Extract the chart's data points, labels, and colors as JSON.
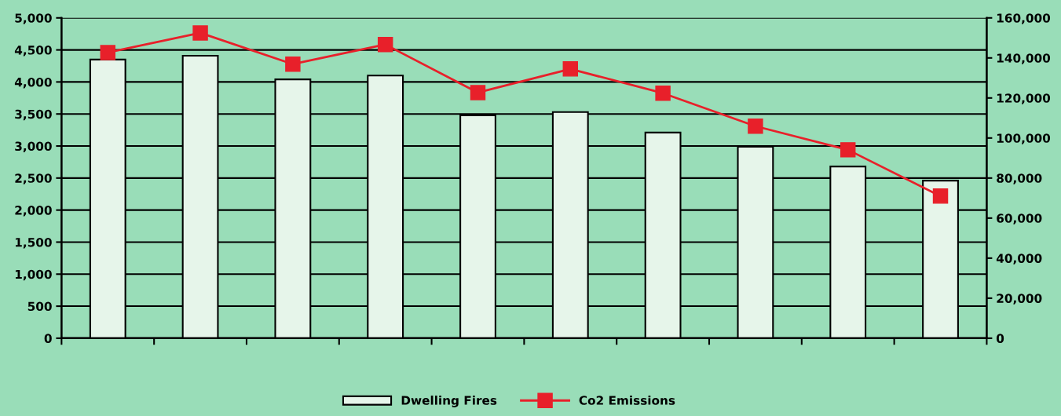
{
  "chart_data": {
    "type": "bar",
    "categories": [
      null,
      null,
      null,
      null,
      null,
      null,
      null,
      null,
      null,
      null
    ],
    "series": [
      {
        "name": "Dwelling Fires",
        "color": "#e6f5ea",
        "values": [
          4350,
          4410,
          4040,
          4100,
          3480,
          3530,
          3210,
          2990,
          2680,
          2460
        ]
      },
      {
        "name": "Co2 Emissions",
        "type": "line",
        "axis": "y2",
        "color": "#e8202a",
        "marker": "square",
        "line_style": "solid",
        "values": [
          142700,
          152500,
          136900,
          146700,
          122700,
          134500,
          122400,
          105900,
          94100,
          71000
        ]
      }
    ],
    "ylim": [
      0,
      5000
    ],
    "yticks": [
      0,
      500,
      {
        "value": 1000,
        "label": "1,000"
      },
      {
        "value": 1500,
        "label": "1,500"
      },
      {
        "value": 2000,
        "label": "2,000"
      },
      {
        "value": 2500,
        "label": "2,500"
      },
      {
        "value": 3000,
        "label": "3,000"
      },
      {
        "value": 3500,
        "label": "3,500"
      },
      {
        "value": 4000,
        "label": "4,000"
      },
      {
        "value": 4500,
        "label": "4,500"
      },
      {
        "value": 5000,
        "label": "5,000"
      }
    ],
    "y2lim": [
      0,
      160000
    ],
    "y2ticks": [
      0,
      {
        "value": 20000,
        "label": "20,000"
      },
      {
        "value": 40000,
        "label": "40,000"
      },
      {
        "value": 60000,
        "label": "60,000"
      },
      {
        "value": 80000,
        "label": "80,000"
      },
      {
        "value": 100000,
        "label": "100,000"
      },
      {
        "value": 120000,
        "label": "120,000"
      },
      {
        "value": 140000,
        "label": "140,000"
      },
      {
        "value": 160000,
        "label": "160,000"
      }
    ],
    "grid": "y",
    "legend": "bottom"
  }
}
